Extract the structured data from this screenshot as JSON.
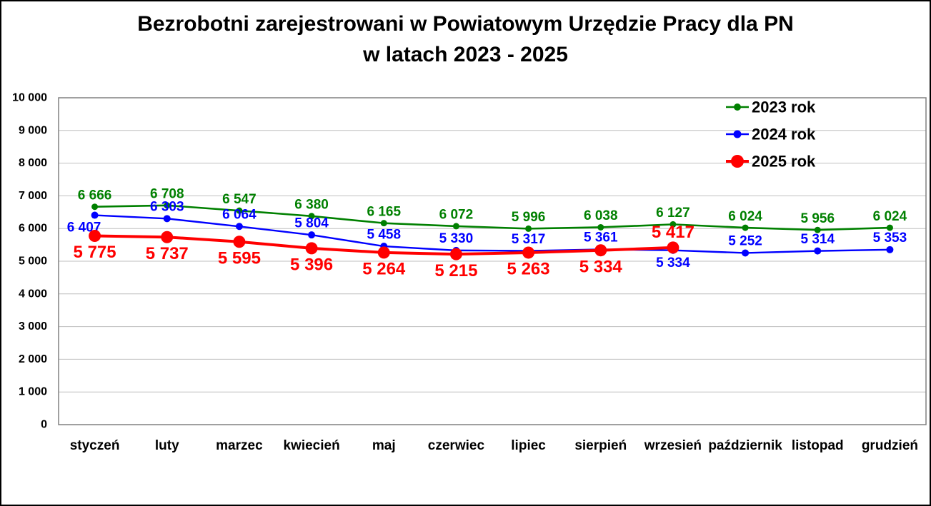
{
  "title": {
    "line1": "Bezrobotni zarejestrowani w Powiatowym Urzędzie Pracy dla PN",
    "line2": "w latach 2023 - 2025"
  },
  "colors": {
    "gridline": "#BFBFBF",
    "plot_border": "#808080",
    "axis_text": "#000000",
    "legend_text": "#000000",
    "background": "#FFFFFF"
  },
  "chart_data": {
    "type": "line",
    "title": "Bezrobotni zarejestrowani w Powiatowym Urzędzie Pracy dla PN w latach 2023 - 2025",
    "xlabel": "",
    "ylabel": "",
    "grid": true,
    "legend_position": "top-right",
    "ylim": [
      0,
      10000
    ],
    "ytick_step": 1000,
    "y_tick_labels": [
      "0",
      "1 000",
      "2 000",
      "3 000",
      "4 000",
      "5 000",
      "6 000",
      "7 000",
      "8 000",
      "9 000",
      "10 000"
    ],
    "categories": [
      "styczeń",
      "luty",
      "marzec",
      "kwiecień",
      "maj",
      "czerwiec",
      "lipiec",
      "sierpień",
      "wrzesień",
      "październik",
      "listopad",
      "grudzień"
    ],
    "series": [
      {
        "name": "2023 rok",
        "color": "#008000",
        "values": [
          6666,
          6708,
          6547,
          6380,
          6165,
          6072,
          5996,
          6038,
          6127,
          6024,
          5956,
          6024
        ],
        "label_positions": [
          "above",
          "above",
          "above",
          "above",
          "above",
          "above",
          "above",
          "above",
          "above",
          "above",
          "above",
          "above"
        ],
        "label_dx": [
          0,
          0,
          0,
          0,
          0,
          0,
          0,
          0,
          0,
          0,
          0,
          0
        ]
      },
      {
        "name": "2024 rok",
        "color": "#0000FF",
        "values": [
          6407,
          6303,
          6064,
          5804,
          5458,
          5330,
          5317,
          5361,
          5334,
          5252,
          5314,
          5353
        ],
        "label_positions": [
          "below",
          "above",
          "above",
          "above",
          "above",
          "above",
          "above",
          "above",
          "below",
          "above",
          "above",
          "above"
        ],
        "label_dx": [
          -15,
          0,
          0,
          0,
          0,
          0,
          0,
          0,
          0,
          0,
          0,
          0
        ]
      },
      {
        "name": "2025 rok",
        "color": "#FF0000",
        "values": [
          5775,
          5737,
          5595,
          5396,
          5264,
          5215,
          5263,
          5334,
          5417,
          null,
          null,
          null
        ],
        "label_positions": [
          "below",
          "below",
          "below",
          "below",
          "below",
          "below",
          "below",
          "below",
          "above",
          "above",
          "above",
          "above"
        ],
        "label_dx": [
          0,
          0,
          0,
          0,
          0,
          0,
          0,
          0,
          0,
          0,
          0,
          0
        ]
      }
    ]
  }
}
